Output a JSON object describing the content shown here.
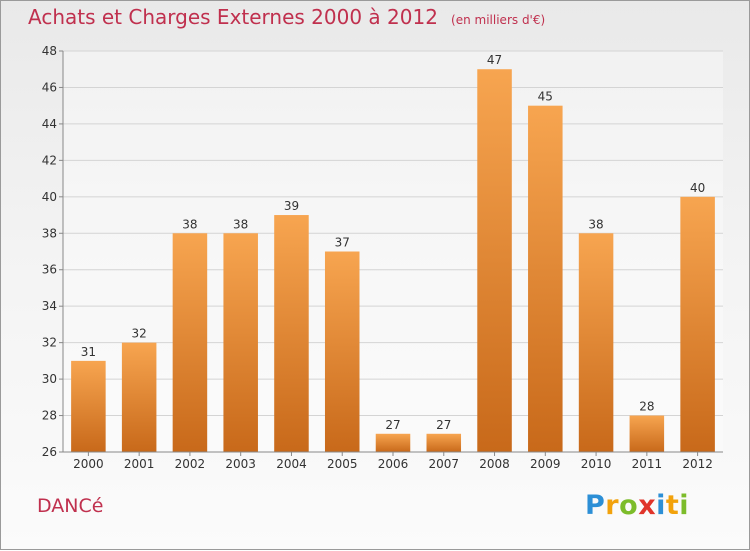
{
  "title": "Achats et Charges Externes 2000 à 2012",
  "unit": "(en milliers d'€)",
  "commune": "DANCé",
  "logo": {
    "text": "Proxiti",
    "colors": [
      "#2c8fd6",
      "#f2a20c",
      "#7cbc2a",
      "#e0342a",
      "#2c8fd6",
      "#f2a20c",
      "#7cbc2a"
    ]
  },
  "colors": {
    "bar_top": "#f7a550",
    "bar_bottom": "#c8691a",
    "title": "#c0304e"
  },
  "chart_data": {
    "type": "bar",
    "categories": [
      "2000",
      "2001",
      "2002",
      "2003",
      "2004",
      "2005",
      "2006",
      "2007",
      "2008",
      "2009",
      "2010",
      "2011",
      "2012"
    ],
    "values": [
      31,
      32,
      38,
      38,
      39,
      37,
      27,
      27,
      47,
      45,
      38,
      28,
      40
    ],
    "ylim": [
      26,
      48
    ],
    "yticks": [
      26,
      28,
      30,
      32,
      34,
      36,
      38,
      40,
      42,
      44,
      46,
      48
    ],
    "grid": true,
    "data_labels": true
  }
}
